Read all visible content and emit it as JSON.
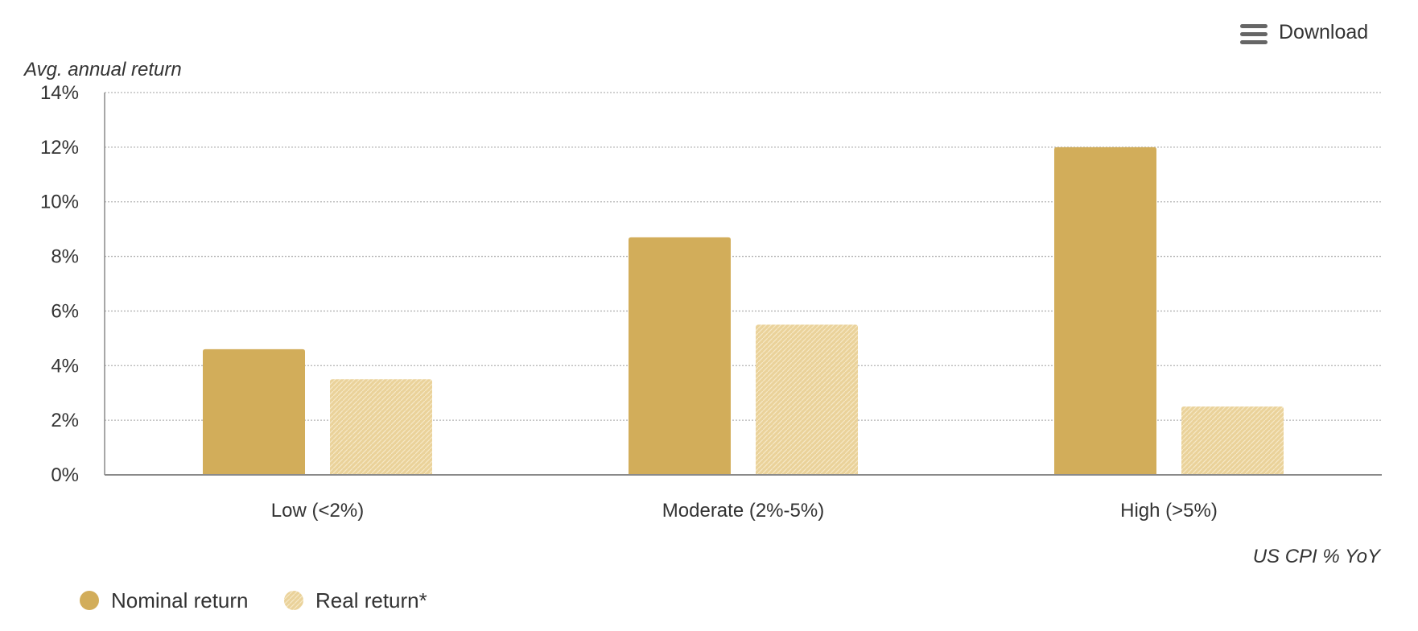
{
  "toolbar": {
    "download_label": "Download",
    "download_icon": "menu-icon"
  },
  "colors": {
    "nominal": "#d2ad5a",
    "real": "#ead29a",
    "real_pattern_dot": "#f6e8c6",
    "grid": "#b3b3b3",
    "axis": "#8a8a8a",
    "text": "#333333"
  },
  "chart_data": {
    "type": "bar",
    "categories": [
      "Low (<2%)",
      "Moderate (2%-5%)",
      "High (>5%)"
    ],
    "series": [
      {
        "name": "Nominal return",
        "values": [
          4.6,
          8.7,
          12.0
        ]
      },
      {
        "name": "Real return*",
        "values": [
          3.5,
          5.5,
          2.5
        ]
      }
    ],
    "ylabel": "Avg. annual return",
    "xlabel": "US CPI % YoY",
    "ylim": [
      0,
      14
    ],
    "yticks": [
      0,
      2,
      4,
      6,
      8,
      10,
      12,
      14
    ],
    "ytick_labels": [
      "0%",
      "2%",
      "4%",
      "6%",
      "8%",
      "10%",
      "12%",
      "14%"
    ],
    "grid": true,
    "legend_position": "bottom-left"
  }
}
